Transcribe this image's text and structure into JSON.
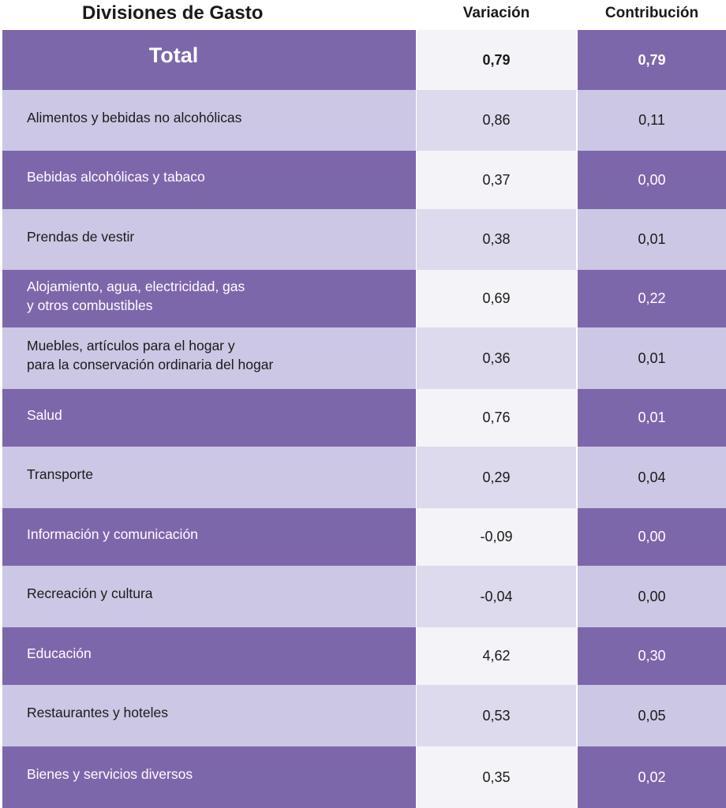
{
  "chart_data": {
    "type": "table",
    "columns": [
      "Divisiones de Gasto",
      "Variación",
      "Contribución"
    ],
    "total": {
      "label": "Total",
      "variacion": "0,79",
      "contribucion": "0,79"
    },
    "rows": [
      {
        "label": "Alimentos y bebidas no alcohólicas",
        "variacion": "0,86",
        "contribucion": "0,11"
      },
      {
        "label": "Bebidas alcohólicas y tabaco",
        "variacion": "0,37",
        "contribucion": "0,00"
      },
      {
        "label": "Prendas de vestir",
        "variacion": "0,38",
        "contribucion": "0,01"
      },
      {
        "label": "Alojamiento, agua, electricidad, gas\ny otros combustibles",
        "variacion": "0,69",
        "contribucion": "0,22"
      },
      {
        "label": "Muebles, artículos para el hogar y\npara la conservación ordinaria del hogar",
        "variacion": "0,36",
        "contribucion": "0,01"
      },
      {
        "label": "Salud",
        "variacion": "0,76",
        "contribucion": "0,01"
      },
      {
        "label": "Transporte",
        "variacion": "0,29",
        "contribucion": "0,04"
      },
      {
        "label": "Información y comunicación",
        "variacion": "-0,09",
        "contribucion": "0,00"
      },
      {
        "label": "Recreación y cultura",
        "variacion": "-0,04",
        "contribucion": "0,00"
      },
      {
        "label": "Educación",
        "variacion": "4,62",
        "contribucion": "0,30"
      },
      {
        "label": "Restaurantes y hoteles",
        "variacion": "0,53",
        "contribucion": "0,05"
      },
      {
        "label": "Bienes y servicios diversos",
        "variacion": "0,35",
        "contribucion": "0,02"
      }
    ]
  },
  "colors": {
    "dark_purple": "#7d67ab",
    "light_purple": "#ccc7e4",
    "light_gray_purple": "#dcdaec",
    "near_white": "#f3f3f8"
  }
}
